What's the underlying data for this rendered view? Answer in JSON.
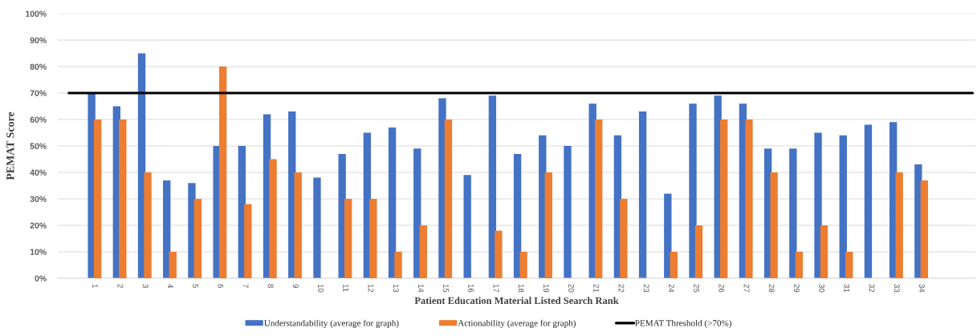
{
  "chart_data": {
    "type": "bar",
    "xlabel": "Patient Education Material Listed Search Rank",
    "ylabel": "PEMAT Score",
    "categories": [
      "1",
      "2",
      "3",
      "4",
      "5",
      "6",
      "7",
      "8",
      "9",
      "10",
      "11",
      "12",
      "13",
      "14",
      "15",
      "16",
      "17",
      "18",
      "19",
      "20",
      "21",
      "22",
      "23",
      "24",
      "25",
      "26",
      "27",
      "28",
      "29",
      "30",
      "31",
      "32",
      "33",
      "34"
    ],
    "series": [
      {
        "name": "Understandability (average for graph)",
        "color": "#4472c4",
        "values": [
          70,
          65,
          85,
          37,
          36,
          50,
          50,
          62,
          63,
          38,
          47,
          55,
          57,
          49,
          68,
          39,
          69,
          47,
          54,
          50,
          66,
          54,
          63,
          32,
          66,
          69,
          66,
          49,
          49,
          55,
          54,
          58,
          59,
          43
        ]
      },
      {
        "name": "Actionability (average for graph)",
        "color": "#ed7d31",
        "values": [
          60,
          60,
          40,
          10,
          30,
          80,
          28,
          45,
          40,
          null,
          30,
          30,
          10,
          20,
          60,
          null,
          18,
          10,
          40,
          null,
          60,
          30,
          null,
          10,
          20,
          60,
          60,
          40,
          10,
          20,
          10,
          null,
          40,
          37
        ]
      }
    ],
    "ylim": [
      0,
      100
    ],
    "yticks": [
      {
        "value": 0,
        "label": "0%"
      },
      {
        "value": 10,
        "label": "10%"
      },
      {
        "value": 20,
        "label": "20%"
      },
      {
        "value": 30,
        "label": "30%"
      },
      {
        "value": 40,
        "label": "40%"
      },
      {
        "value": 50,
        "label": "50%"
      },
      {
        "value": 60,
        "label": "60%"
      },
      {
        "value": 70,
        "label": "70%"
      },
      {
        "value": 80,
        "label": "80%"
      },
      {
        "value": 90,
        "label": "90%"
      },
      {
        "value": 100,
        "label": "100%"
      }
    ],
    "grid": "y",
    "legend": "bottom",
    "ref_lines": [
      {
        "axis": "y",
        "value": 70,
        "label": "PEMAT Threshold (>70%)",
        "color": "#000000"
      }
    ]
  }
}
